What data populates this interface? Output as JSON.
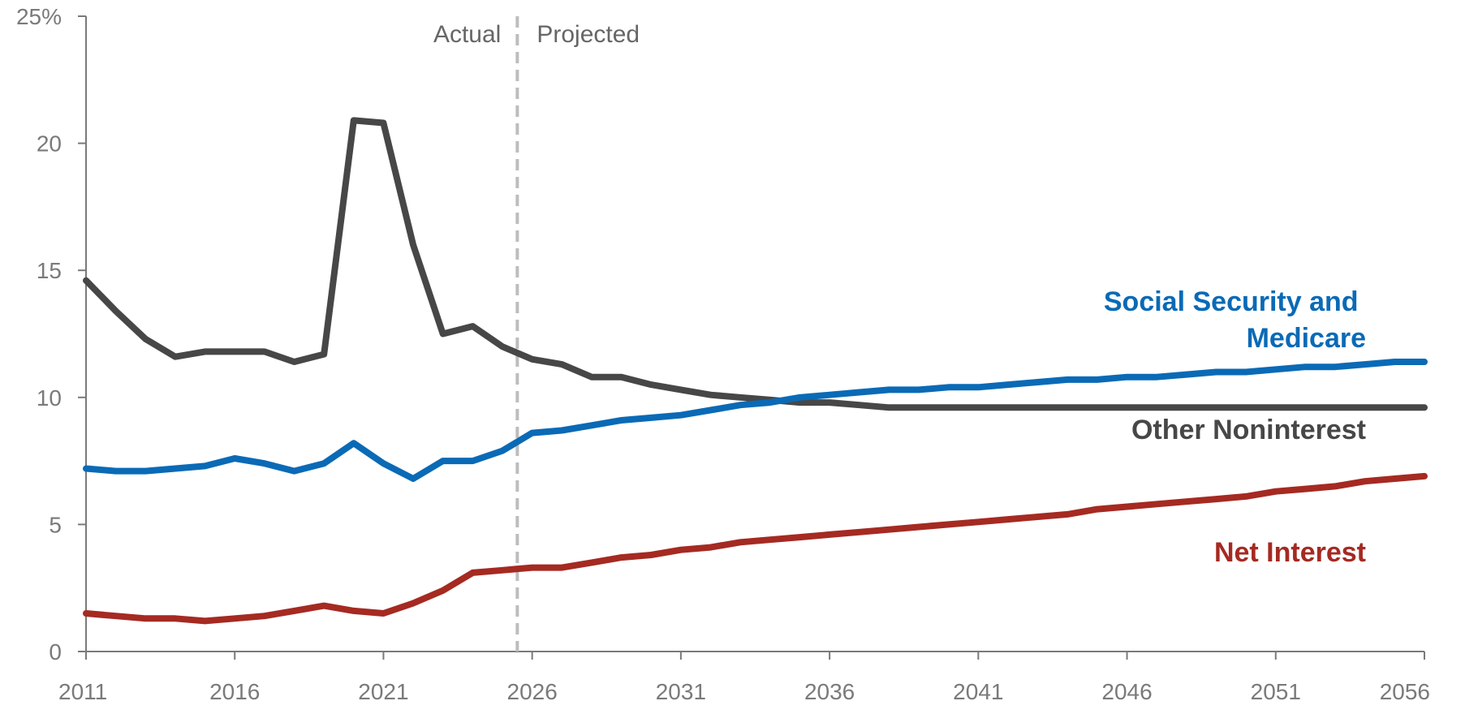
{
  "chart_data": {
    "type": "line",
    "x_ticks": [
      2011,
      2016,
      2021,
      2026,
      2031,
      2036,
      2041,
      2046,
      2051,
      2056
    ],
    "y_ticks": [
      {
        "value": 0,
        "label": "0"
      },
      {
        "value": 5,
        "label": "5"
      },
      {
        "value": 10,
        "label": "10"
      },
      {
        "value": 15,
        "label": "15"
      },
      {
        "value": 20,
        "label": "20"
      },
      {
        "value": 25,
        "label": "25%"
      }
    ],
    "xlim": [
      2011,
      2056
    ],
    "ylim": [
      0,
      25
    ],
    "grid": false,
    "divider": {
      "x": 2025.5,
      "left_label": "Actual",
      "right_label": "Projected"
    },
    "series": [
      {
        "name": "Social Security and Medicare",
        "label_lines": [
          "Social Security and",
          "Medicare"
        ],
        "color": "#0a6ab6",
        "x": [
          2011,
          2012,
          2013,
          2014,
          2015,
          2016,
          2017,
          2018,
          2019,
          2020,
          2021,
          2022,
          2023,
          2024,
          2025,
          2026,
          2027,
          2028,
          2029,
          2030,
          2031,
          2032,
          2033,
          2034,
          2035,
          2036,
          2037,
          2038,
          2039,
          2040,
          2041,
          2042,
          2043,
          2044,
          2045,
          2046,
          2047,
          2048,
          2049,
          2050,
          2051,
          2052,
          2053,
          2054,
          2055,
          2056
        ],
        "values": [
          7.2,
          7.1,
          7.1,
          7.2,
          7.3,
          7.6,
          7.4,
          7.1,
          7.4,
          8.2,
          7.4,
          6.8,
          7.5,
          7.5,
          7.9,
          8.6,
          8.7,
          8.9,
          9.1,
          9.2,
          9.3,
          9.5,
          9.7,
          9.8,
          10.0,
          10.1,
          10.2,
          10.3,
          10.3,
          10.4,
          10.4,
          10.5,
          10.6,
          10.7,
          10.7,
          10.8,
          10.8,
          10.9,
          11.0,
          11.0,
          11.1,
          11.2,
          11.2,
          11.3,
          11.4,
          11.4
        ]
      },
      {
        "name": "Other Noninterest",
        "label_lines": [
          "Other Noninterest"
        ],
        "color": "#474747",
        "x": [
          2011,
          2012,
          2013,
          2014,
          2015,
          2016,
          2017,
          2018,
          2019,
          2020,
          2021,
          2022,
          2023,
          2024,
          2025,
          2026,
          2027,
          2028,
          2029,
          2030,
          2031,
          2032,
          2033,
          2034,
          2035,
          2036,
          2037,
          2038,
          2039,
          2040,
          2041,
          2042,
          2043,
          2044,
          2045,
          2046,
          2047,
          2048,
          2049,
          2050,
          2051,
          2052,
          2053,
          2054,
          2055,
          2056
        ],
        "values": [
          14.6,
          13.4,
          12.3,
          11.6,
          11.8,
          11.8,
          11.8,
          11.4,
          11.7,
          20.9,
          20.8,
          16.0,
          12.5,
          12.8,
          12.0,
          11.5,
          11.3,
          10.8,
          10.8,
          10.5,
          10.3,
          10.1,
          10.0,
          9.9,
          9.8,
          9.8,
          9.7,
          9.6,
          9.6,
          9.6,
          9.6,
          9.6,
          9.6,
          9.6,
          9.6,
          9.6,
          9.6,
          9.6,
          9.6,
          9.6,
          9.6,
          9.6,
          9.6,
          9.6,
          9.6,
          9.6
        ]
      },
      {
        "name": "Net Interest",
        "label_lines": [
          "Net Interest"
        ],
        "color": "#a52a22",
        "x": [
          2011,
          2012,
          2013,
          2014,
          2015,
          2016,
          2017,
          2018,
          2019,
          2020,
          2021,
          2022,
          2023,
          2024,
          2025,
          2026,
          2027,
          2028,
          2029,
          2030,
          2031,
          2032,
          2033,
          2034,
          2035,
          2036,
          2037,
          2038,
          2039,
          2040,
          2041,
          2042,
          2043,
          2044,
          2045,
          2046,
          2047,
          2048,
          2049,
          2050,
          2051,
          2052,
          2053,
          2054,
          2055,
          2056
        ],
        "values": [
          1.5,
          1.4,
          1.3,
          1.3,
          1.2,
          1.3,
          1.4,
          1.6,
          1.8,
          1.6,
          1.5,
          1.9,
          2.4,
          3.1,
          3.2,
          3.3,
          3.3,
          3.5,
          3.7,
          3.8,
          4.0,
          4.1,
          4.3,
          4.4,
          4.5,
          4.6,
          4.7,
          4.8,
          4.9,
          5.0,
          5.1,
          5.2,
          5.3,
          5.4,
          5.6,
          5.7,
          5.8,
          5.9,
          6.0,
          6.1,
          6.3,
          6.4,
          6.5,
          6.7,
          6.8,
          6.9
        ]
      }
    ]
  }
}
